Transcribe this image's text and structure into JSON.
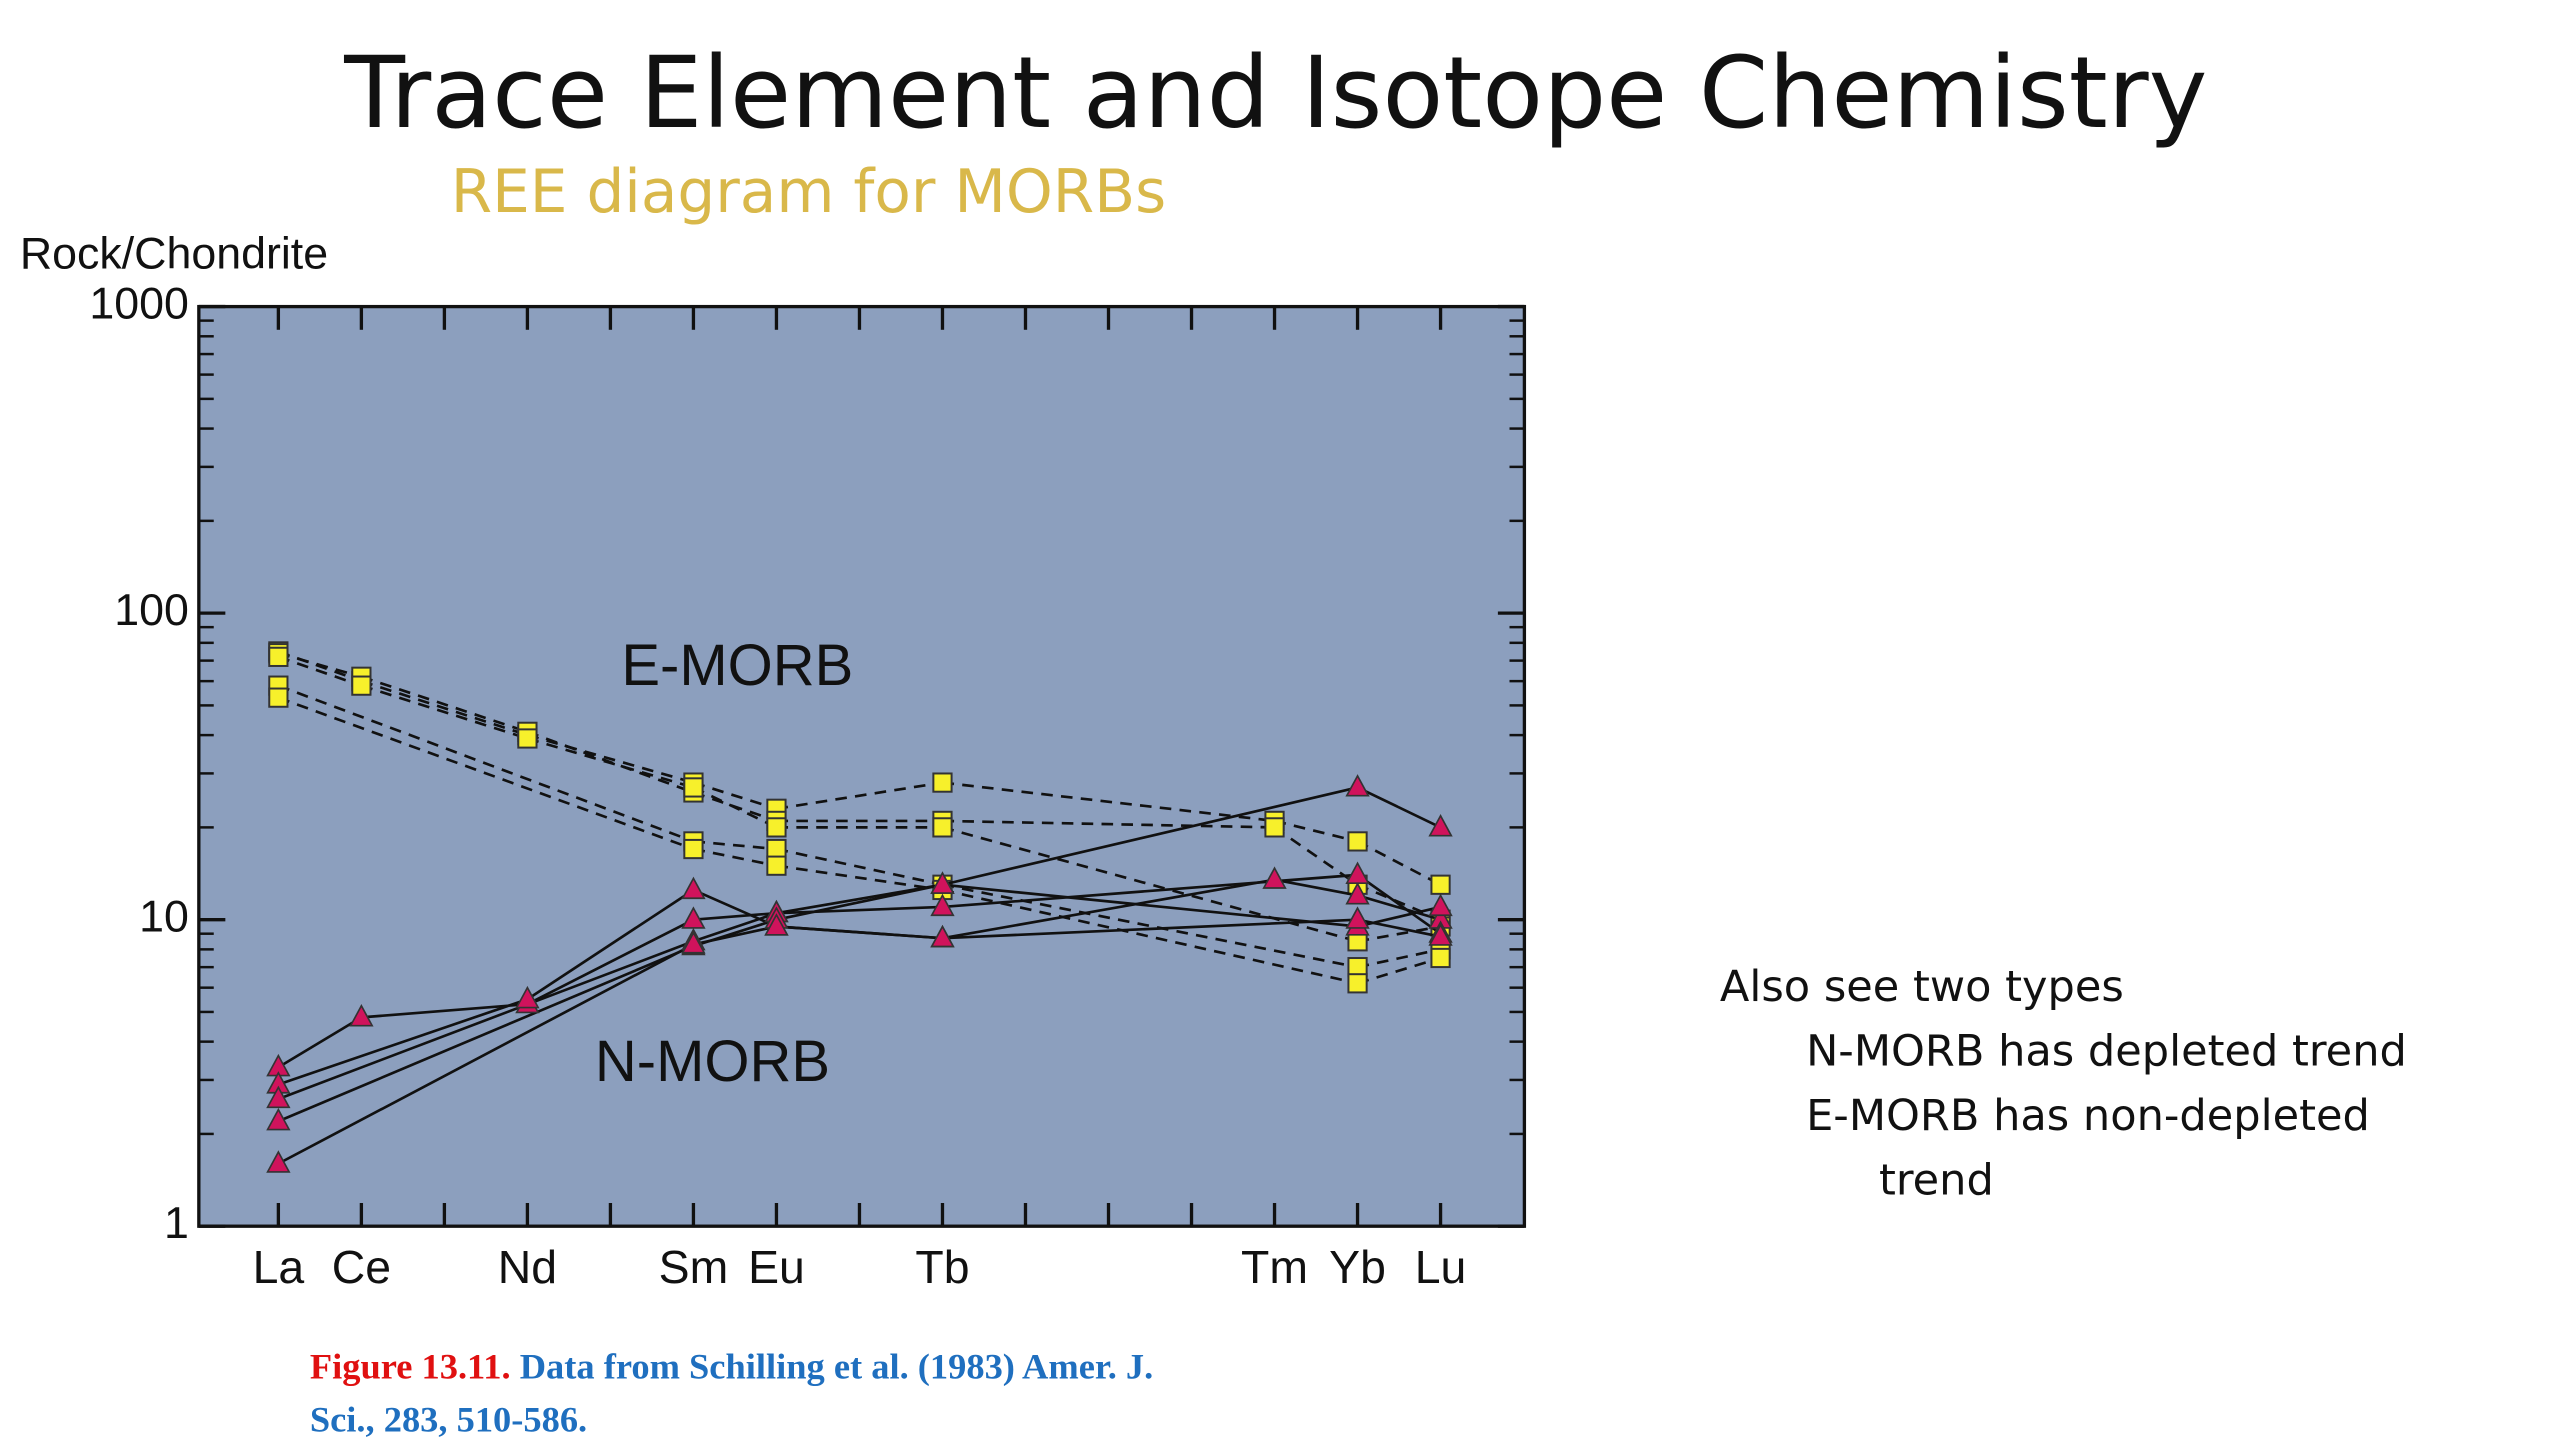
{
  "slide": {
    "title": "Trace Element and Isotope Chemistry",
    "subtitle": "REE diagram for MORBs"
  },
  "chart_data": {
    "type": "line",
    "y_label": "Rock/Chondrite",
    "log_y": true,
    "background": "#8c9fbe",
    "categories": [
      "La",
      "Ce",
      null,
      "Nd",
      null,
      "Sm",
      "Eu",
      null,
      "Tb",
      null,
      null,
      null,
      "Tm",
      "Yb",
      "Lu"
    ],
    "ylim": [
      1,
      1000
    ],
    "yticks": [
      1,
      10,
      100,
      1000
    ],
    "yminorticks": [
      2,
      3,
      4,
      5,
      6,
      7,
      8,
      9,
      20,
      30,
      40,
      50,
      60,
      70,
      80,
      90,
      200,
      300,
      400,
      500,
      600,
      700,
      800,
      900
    ],
    "series": [
      {
        "name": "E-MORB",
        "color": "#f7f02b",
        "marker": "square",
        "line": "dashed",
        "samples": [
          [
            75,
            60,
            null,
            40,
            null,
            28,
            23,
            null,
            28,
            null,
            null,
            null,
            21,
            18,
            13
          ],
          [
            74,
            62,
            null,
            41,
            null,
            26,
            21,
            null,
            21,
            null,
            null,
            null,
            20,
            13,
            10
          ],
          [
            72,
            58,
            null,
            39,
            null,
            27,
            20,
            null,
            20,
            null,
            null,
            null,
            null,
            8.5,
            9.5
          ],
          [
            58,
            null,
            null,
            null,
            null,
            18,
            17,
            null,
            13,
            null,
            null,
            null,
            null,
            7,
            8
          ],
          [
            53,
            null,
            null,
            null,
            null,
            17,
            15,
            null,
            12.5,
            null,
            null,
            null,
            null,
            6.2,
            7.5
          ]
        ]
      },
      {
        "name": "N-MORB",
        "color": "#d0135c",
        "marker": "triangle",
        "line": "solid",
        "samples": [
          [
            3.3,
            4.8,
            null,
            5.3,
            null,
            10,
            10.5,
            null,
            13,
            null,
            null,
            null,
            null,
            27,
            20
          ],
          [
            2.9,
            null,
            null,
            5.5,
            null,
            12.5,
            9.5,
            null,
            8.7,
            null,
            null,
            null,
            13.5,
            12,
            10
          ],
          [
            2.6,
            null,
            null,
            null,
            null,
            8.5,
            10.5,
            null,
            11,
            null,
            null,
            null,
            null,
            14,
            9
          ],
          [
            2.2,
            null,
            null,
            null,
            null,
            8.2,
            10,
            null,
            13,
            null,
            null,
            null,
            null,
            9.5,
            11
          ],
          [
            1.6,
            null,
            null,
            null,
            null,
            8.3,
            9.5,
            null,
            8.7,
            null,
            null,
            null,
            null,
            10,
            8.8
          ]
        ]
      }
    ]
  },
  "caption": {
    "label": "Figure 13.11.",
    "lines": [
      "Data from Schilling et al. (1983) Amer. J.",
      "Sci., 283, 510-586."
    ]
  },
  "notes": {
    "heading": "Also see two types",
    "items": [
      "N-MORB has depleted trend",
      "E-MORB has non-depleted"
    ],
    "continuation": "trend"
  }
}
